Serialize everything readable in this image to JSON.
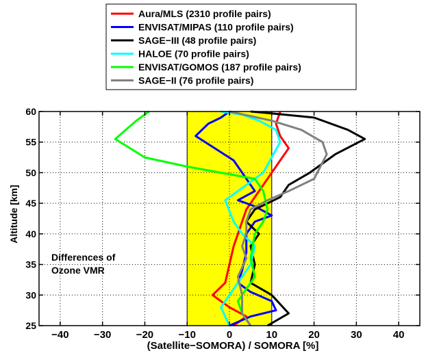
{
  "chart_data": {
    "type": "line",
    "xlabel": "(Satellite−SOMORA) / SOMORA [%]",
    "ylabel": "Altitude [km]",
    "xlim": [
      -45,
      45
    ],
    "ylim": [
      25,
      60
    ],
    "xticks": [
      -40,
      -30,
      -20,
      -10,
      0,
      10,
      20,
      30,
      40
    ],
    "yticks": [
      25,
      30,
      35,
      40,
      45,
      50,
      55,
      60
    ],
    "xtick_labels": [
      "−40",
      "−30",
      "−20",
      "−10",
      "0",
      "10",
      "20",
      "30",
      "40"
    ],
    "ytick_labels": [
      "25",
      "30",
      "35",
      "40",
      "45",
      "50",
      "55",
      "60"
    ],
    "grid": true,
    "shaded_band": {
      "x_range": [
        -10,
        10
      ],
      "color": "#ffff00"
    },
    "annotation": [
      "Differences of",
      "Ozone VMR"
    ],
    "legend_position": "top-center-outside",
    "series": [
      {
        "name": "Aura/MLS  (2310 profile pairs)",
        "color": "#ff0000",
        "x": [
          1,
          4,
          0,
          -4,
          -1,
          0,
          1,
          2,
          3,
          4,
          7,
          10,
          12,
          14,
          12,
          11,
          12
        ],
        "y": [
          25,
          26.5,
          28,
          30,
          32,
          35,
          38,
          40,
          42,
          44,
          47,
          50,
          52,
          54,
          56,
          58,
          60
        ]
      },
      {
        "name": "ENVISAT/MIPAS (110 profile pairs)",
        "color": "#0000ff",
        "x": [
          0,
          5,
          11,
          10,
          5,
          2,
          3,
          4,
          4,
          6,
          10,
          6,
          2,
          6,
          1,
          -8,
          -5,
          -2,
          0
        ],
        "y": [
          25,
          26.5,
          27.5,
          29,
          30.5,
          32,
          34,
          37,
          40,
          42,
          43,
          44.5,
          45.5,
          47,
          52,
          56,
          58,
          59,
          60
        ]
      },
      {
        "name": "SAGE−III  (48 profile pairs)",
        "color": "#000000",
        "x": [
          9,
          14,
          10,
          5,
          6,
          5,
          7,
          4,
          6,
          12,
          14,
          19,
          25,
          32,
          28,
          20,
          10,
          5
        ],
        "y": [
          25,
          27,
          30,
          32,
          35,
          38,
          40,
          42,
          44,
          46,
          48,
          50,
          53,
          55.5,
          57,
          59,
          59.7,
          60
        ]
      },
      {
        "name": "HALOE  (70 profile pairs)",
        "color": "#00ffff",
        "x": [
          0,
          -2,
          1,
          3,
          5,
          6,
          3,
          1,
          -1,
          2,
          5,
          8,
          12,
          11,
          7,
          3,
          -2
        ],
        "y": [
          25,
          28,
          31,
          33,
          35,
          38,
          40,
          42,
          45.5,
          47,
          48.5,
          50,
          55,
          57,
          58.5,
          59.5,
          60
        ]
      },
      {
        "name": "ENVISAT/GOMOS  (187 profile pairs)",
        "color": "#00ff00",
        "x": [
          5,
          3,
          2,
          4,
          6,
          5,
          6,
          8,
          9,
          8,
          6,
          -10,
          -20,
          -27,
          -22,
          -19
        ],
        "y": [
          25,
          27,
          29,
          31,
          33,
          36,
          40,
          42,
          44,
          47,
          49,
          51,
          52.5,
          55.5,
          58.5,
          60
        ]
      },
      {
        "name": "SAGE−II (76 profile pairs)",
        "color": "#808080",
        "x": [
          5,
          3,
          3,
          2,
          4,
          3,
          4,
          4,
          5,
          9,
          14,
          20,
          23,
          22,
          17,
          10,
          0
        ],
        "y": [
          25,
          27,
          30,
          33,
          36,
          38,
          40,
          42,
          44,
          45.5,
          47,
          49,
          53,
          55,
          57,
          58.5,
          60
        ]
      }
    ]
  }
}
